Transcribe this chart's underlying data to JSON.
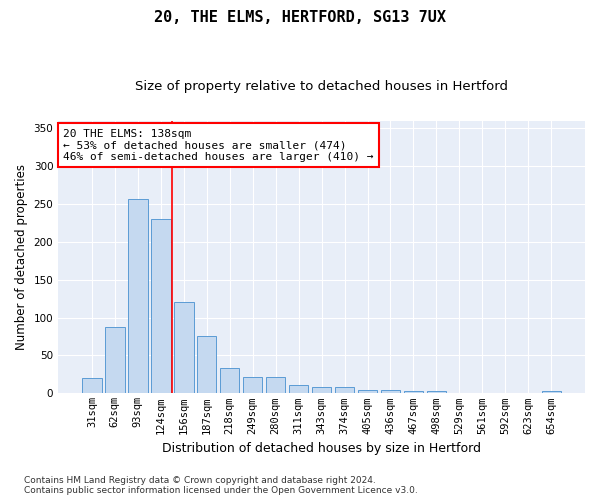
{
  "title": "20, THE ELMS, HERTFORD, SG13 7UX",
  "subtitle": "Size of property relative to detached houses in Hertford",
  "xlabel": "Distribution of detached houses by size in Hertford",
  "ylabel": "Number of detached properties",
  "categories": [
    "31sqm",
    "62sqm",
    "93sqm",
    "124sqm",
    "156sqm",
    "187sqm",
    "218sqm",
    "249sqm",
    "280sqm",
    "311sqm",
    "343sqm",
    "374sqm",
    "405sqm",
    "436sqm",
    "467sqm",
    "498sqm",
    "529sqm",
    "561sqm",
    "592sqm",
    "623sqm",
    "654sqm"
  ],
  "values": [
    20,
    87,
    257,
    230,
    120,
    76,
    34,
    22,
    22,
    11,
    9,
    9,
    5,
    5,
    3,
    3,
    1,
    1,
    0,
    0,
    3
  ],
  "bar_color": "#c5d9f0",
  "bar_edge_color": "#5b9bd5",
  "red_line_x": 3.5,
  "annotation_text": "20 THE ELMS: 138sqm\n← 53% of detached houses are smaller (474)\n46% of semi-detached houses are larger (410) →",
  "annotation_box_color": "white",
  "annotation_box_edge_color": "red",
  "ylim": [
    0,
    360
  ],
  "yticks": [
    0,
    50,
    100,
    150,
    200,
    250,
    300,
    350
  ],
  "bg_color": "#e8eef8",
  "grid_color": "white",
  "footer": "Contains HM Land Registry data © Crown copyright and database right 2024.\nContains public sector information licensed under the Open Government Licence v3.0.",
  "title_fontsize": 11,
  "subtitle_fontsize": 9.5,
  "xlabel_fontsize": 9,
  "ylabel_fontsize": 8.5,
  "tick_fontsize": 7.5,
  "annotation_fontsize": 8,
  "footer_fontsize": 6.5
}
